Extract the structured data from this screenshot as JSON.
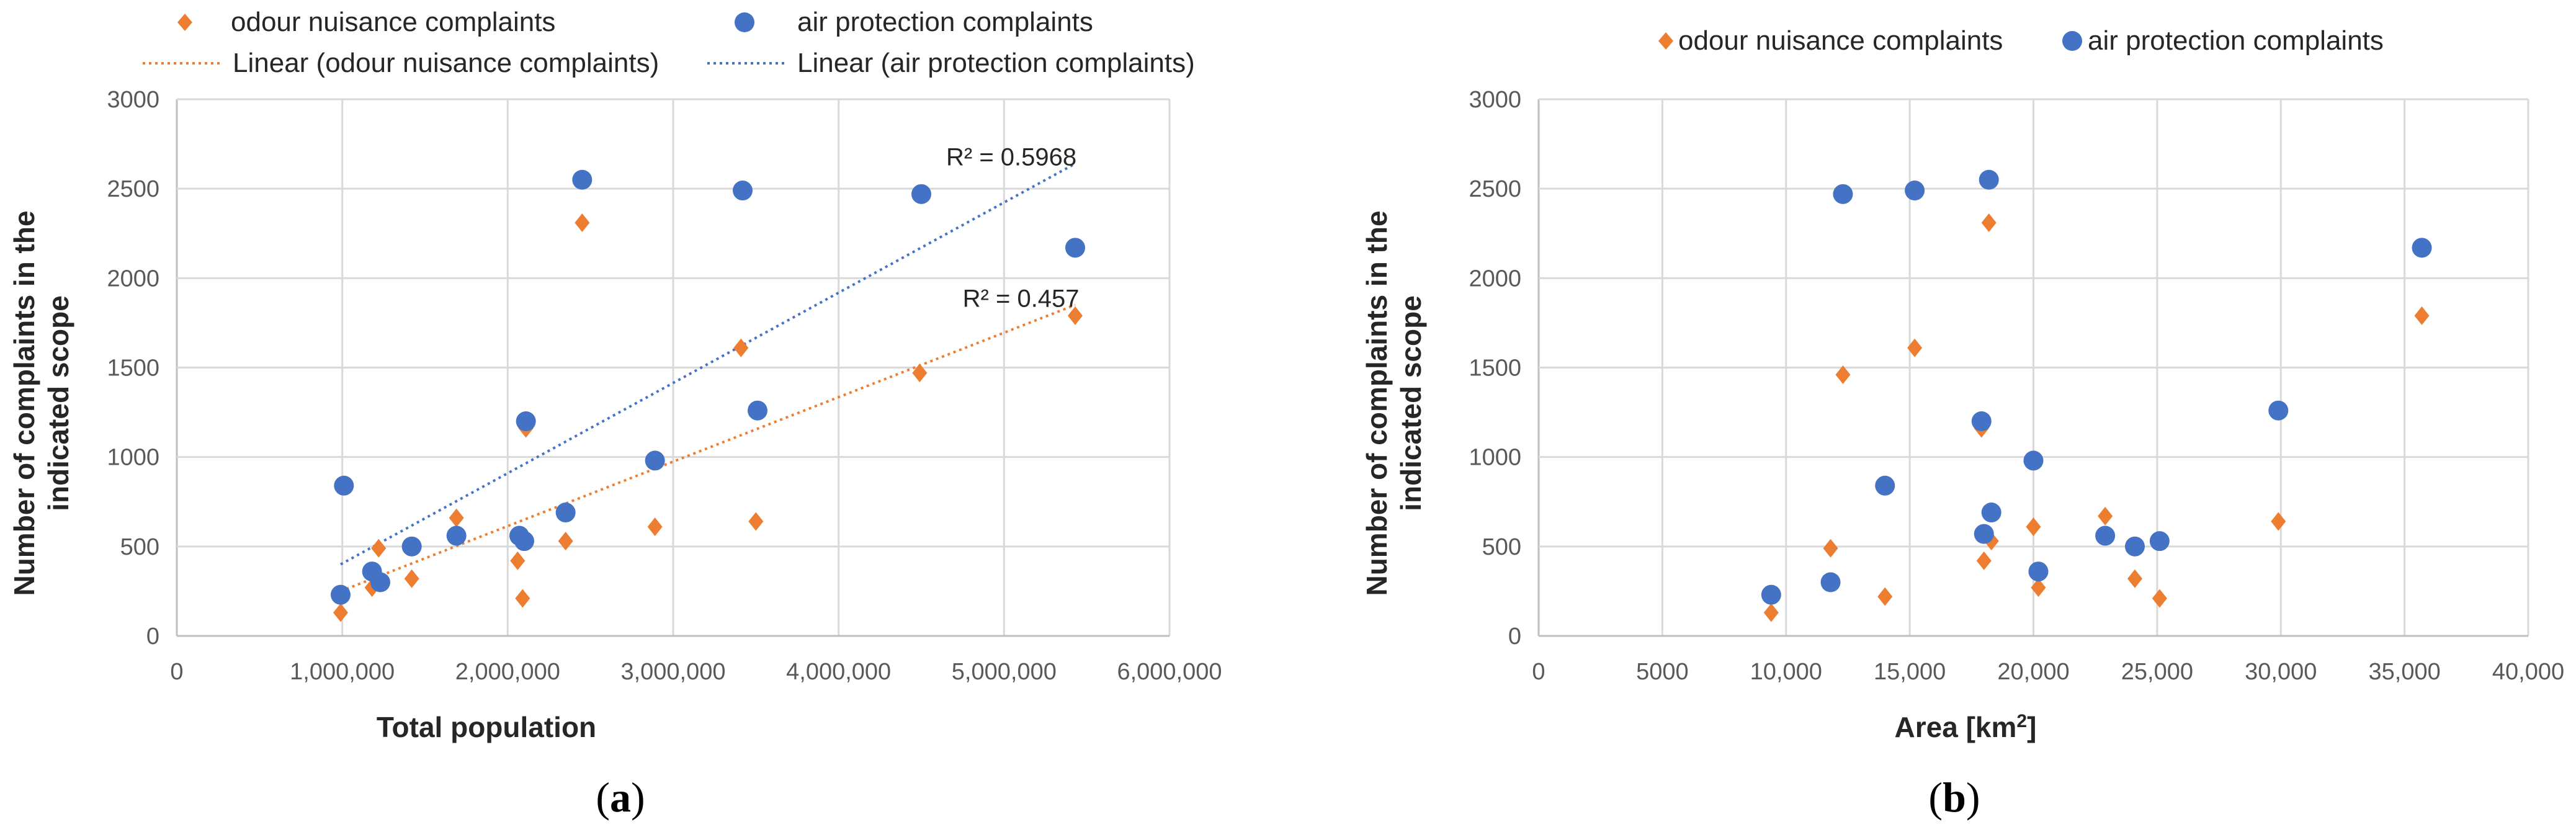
{
  "colors": {
    "odour": "#ED7D31",
    "air": "#4472C4",
    "grid": "#D9D9D9",
    "axis": "#BFBFBF"
  },
  "chart_data": [
    {
      "panel": "a",
      "type": "scatter",
      "panel_label": {
        "open": "(",
        "letter": "a",
        "close": ")"
      },
      "xlabel": "Total population",
      "ylabel_line1": "Number of complaints in the",
      "ylabel_line2": "indicated scope",
      "xlim": [
        0,
        6000000
      ],
      "ylim": [
        0,
        3000
      ],
      "x_ticks": [
        0,
        1000000,
        2000000,
        3000000,
        4000000,
        5000000,
        6000000
      ],
      "x_tick_labels": [
        "0",
        "1,000,000",
        "2,000,000",
        "3,000,000",
        "4,000,000",
        "5,000,000",
        "6,000,000"
      ],
      "y_ticks": [
        0,
        500,
        1000,
        1500,
        2000,
        2500,
        3000
      ],
      "y_tick_labels": [
        "0",
        "500",
        "1000",
        "1500",
        "2000",
        "2500",
        "3000"
      ],
      "legend": [
        "odour nuisance complaints",
        "air protection complaints",
        "Linear (odour nuisance complaints)",
        "Linear (air protection complaints)"
      ],
      "series": [
        {
          "name": "odour nuisance complaints",
          "marker": "diamond",
          "points": [
            [
              990000,
              130
            ],
            [
              1180000,
              270
            ],
            [
              1220000,
              490
            ],
            [
              1420000,
              320
            ],
            [
              1690000,
              660
            ],
            [
              2060000,
              420
            ],
            [
              2090000,
              210
            ],
            [
              2110000,
              1160
            ],
            [
              2350000,
              530
            ],
            [
              2450000,
              2310
            ],
            [
              2890000,
              610
            ],
            [
              3410000,
              1610
            ],
            [
              3500000,
              640
            ],
            [
              4490000,
              1470
            ],
            [
              5430000,
              1790
            ]
          ]
        },
        {
          "name": "air protection complaints",
          "marker": "circle",
          "points": [
            [
              990000,
              230
            ],
            [
              1010000,
              840
            ],
            [
              1180000,
              360
            ],
            [
              1230000,
              300
            ],
            [
              1420000,
              500
            ],
            [
              1690000,
              560
            ],
            [
              2070000,
              560
            ],
            [
              2100000,
              530
            ],
            [
              2110000,
              1200
            ],
            [
              2350000,
              690
            ],
            [
              2450000,
              2550
            ],
            [
              2890000,
              980
            ],
            [
              3420000,
              2490
            ],
            [
              3510000,
              1260
            ],
            [
              4500000,
              2470
            ],
            [
              5430000,
              2170
            ]
          ]
        }
      ],
      "trendlines": [
        {
          "name": "Linear (odour nuisance complaints)",
          "x": [
            990000,
            5430000
          ],
          "y": [
            250,
            1850
          ],
          "r2_label": "R² = 0.457",
          "label_x": 4750000,
          "label_y": 1840
        },
        {
          "name": "Linear (air protection complaints)",
          "x": [
            990000,
            5430000
          ],
          "y": [
            400,
            2640
          ],
          "r2_label": "R² = 0.5968",
          "label_x": 4650000,
          "label_y": 2630
        }
      ]
    },
    {
      "panel": "b",
      "type": "scatter",
      "panel_label": {
        "open": "(",
        "letter": "b",
        "close": ")"
      },
      "xlabel": "Area [km",
      "xlabel_sup": "2",
      "xlabel_end": "]",
      "ylabel_line1": "Number of complaints in the",
      "ylabel_line2": "indicated scope",
      "xlim": [
        0,
        40000
      ],
      "ylim": [
        0,
        3000
      ],
      "x_ticks": [
        0,
        5000,
        10000,
        15000,
        20000,
        25000,
        30000,
        35000,
        40000
      ],
      "x_tick_labels": [
        "0",
        "5000",
        "10,000",
        "15,000",
        "20,000",
        "25,000",
        "30,000",
        "35,000",
        "40,000"
      ],
      "y_ticks": [
        0,
        500,
        1000,
        1500,
        2000,
        2500,
        3000
      ],
      "y_tick_labels": [
        "0",
        "500",
        "1000",
        "1500",
        "2000",
        "2500",
        "3000"
      ],
      "legend": [
        "odour nuisance complaints",
        "air protection complaints"
      ],
      "series": [
        {
          "name": "odour nuisance complaints",
          "marker": "diamond",
          "points": [
            [
              9400,
              130
            ],
            [
              11800,
              490
            ],
            [
              12300,
              1460
            ],
            [
              14000,
              220
            ],
            [
              15200,
              1610
            ],
            [
              17900,
              1160
            ],
            [
              18000,
              420
            ],
            [
              18200,
              2310
            ],
            [
              18300,
              530
            ],
            [
              20000,
              610
            ],
            [
              20200,
              270
            ],
            [
              22900,
              670
            ],
            [
              24100,
              320
            ],
            [
              25100,
              210
            ],
            [
              29900,
              640
            ],
            [
              35700,
              1790
            ]
          ]
        },
        {
          "name": "air protection complaints",
          "marker": "circle",
          "points": [
            [
              9400,
              230
            ],
            [
              11800,
              300
            ],
            [
              12300,
              2470
            ],
            [
              14000,
              840
            ],
            [
              15200,
              2490
            ],
            [
              17900,
              1200
            ],
            [
              18000,
              570
            ],
            [
              18200,
              2550
            ],
            [
              18300,
              690
            ],
            [
              20000,
              980
            ],
            [
              20200,
              360
            ],
            [
              22900,
              560
            ],
            [
              24100,
              500
            ],
            [
              25100,
              530
            ],
            [
              29900,
              1260
            ],
            [
              35700,
              2170
            ]
          ]
        }
      ]
    }
  ]
}
